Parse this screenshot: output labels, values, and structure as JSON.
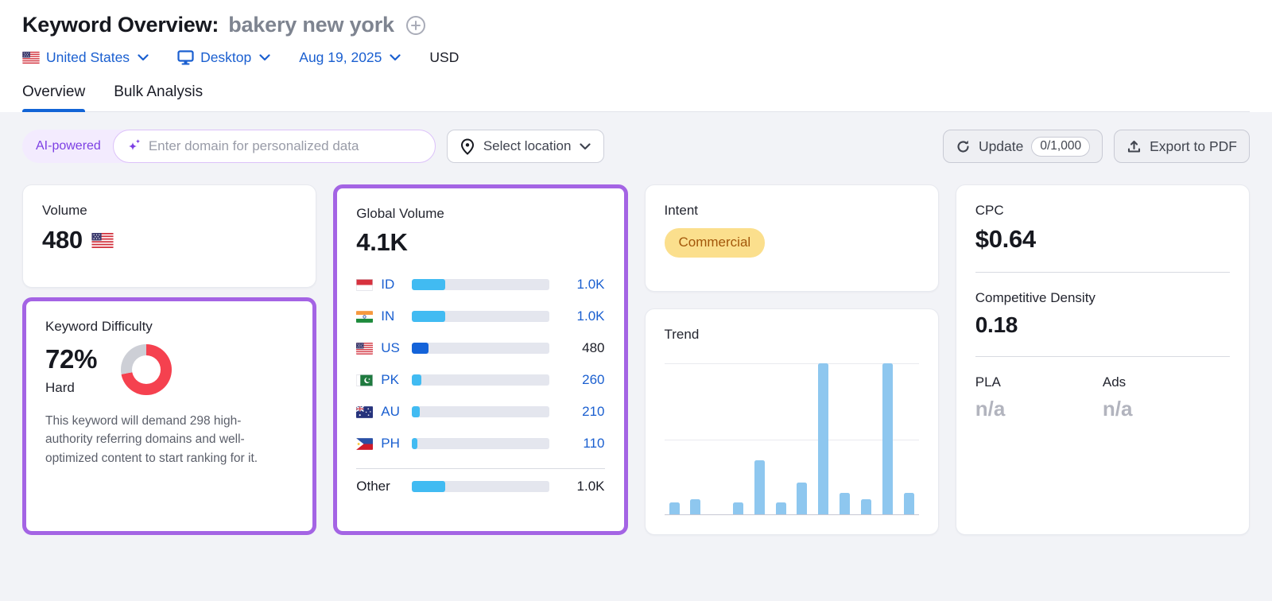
{
  "header": {
    "title": "Keyword Overview:",
    "keyword": "bakery new york",
    "filters": {
      "country": "United States",
      "device": "Desktop",
      "date": "Aug 19, 2025",
      "currency": "USD"
    }
  },
  "tabs": [
    {
      "label": "Overview",
      "active": true
    },
    {
      "label": "Bulk Analysis",
      "active": false
    }
  ],
  "toolbar": {
    "ai_badge": "AI-powered",
    "domain_placeholder": "Enter domain for personalized data",
    "select_location": "Select location",
    "update_label": "Update",
    "update_count": "0/1,000",
    "export_label": "Export to PDF"
  },
  "cards": {
    "volume": {
      "label": "Volume",
      "value": "480",
      "flag": "us-flag"
    },
    "keyword_difficulty": {
      "label": "Keyword Difficulty",
      "value": "72%",
      "percent": 72,
      "level": "Hard",
      "description": "This keyword will demand 298 high-authority referring domains and well-optimized content to start ranking for it."
    },
    "global_volume": {
      "label": "Global Volume",
      "value": "4.1K",
      "rows": [
        {
          "code": "ID",
          "flag": "indonesia-flag",
          "value": "1.0K",
          "pct": 24,
          "link": true,
          "selected": false
        },
        {
          "code": "IN",
          "flag": "india-flag",
          "value": "1.0K",
          "pct": 24,
          "link": true,
          "selected": false
        },
        {
          "code": "US",
          "flag": "us-flag",
          "value": "480",
          "pct": 12,
          "link": false,
          "selected": true
        },
        {
          "code": "PK",
          "flag": "pakistan-flag",
          "value": "260",
          "pct": 7,
          "link": true,
          "selected": false
        },
        {
          "code": "AU",
          "flag": "australia-flag",
          "value": "210",
          "pct": 5.5,
          "link": true,
          "selected": false
        },
        {
          "code": "PH",
          "flag": "philippines-flag",
          "value": "110",
          "pct": 4,
          "link": true,
          "selected": false
        }
      ],
      "other": {
        "label": "Other",
        "value": "1.0K",
        "pct": 24
      }
    },
    "intent": {
      "label": "Intent",
      "badge": "Commercial"
    },
    "trend": {
      "label": "Trend"
    },
    "cpc": {
      "label": "CPC",
      "value": "$0.64"
    },
    "competitive_density": {
      "label": "Competitive Density",
      "value": "0.18"
    },
    "pla": {
      "label": "PLA",
      "value": "n/a"
    },
    "ads": {
      "label": "Ads",
      "value": "n/a"
    }
  },
  "chart_data": {
    "type": "bar",
    "title": "Trend",
    "categories": [
      "1",
      "2",
      "3",
      "4",
      "5",
      "6",
      "7",
      "8",
      "9",
      "10",
      "11",
      "12"
    ],
    "values": [
      8,
      10,
      0,
      8,
      36,
      8,
      21,
      100,
      14,
      10,
      100,
      14
    ],
    "xlabel": "",
    "ylabel": "",
    "ylim": [
      0,
      100
    ],
    "grid": true,
    "legend": false
  },
  "colors": {
    "accent_purple": "#a464e4",
    "link_blue": "#1a5fd0",
    "tab_active_blue": "#1264d6",
    "bar_fill_light_blue": "#41bbf2",
    "bar_fill_selected_blue": "#1463d9",
    "kd_red": "#f5414f",
    "kd_gray": "#cdcfd6",
    "trend_bar_blue": "#8ec7ef",
    "intent_badge_bg": "#fbdf8d",
    "intent_badge_text": "#a3570a"
  }
}
